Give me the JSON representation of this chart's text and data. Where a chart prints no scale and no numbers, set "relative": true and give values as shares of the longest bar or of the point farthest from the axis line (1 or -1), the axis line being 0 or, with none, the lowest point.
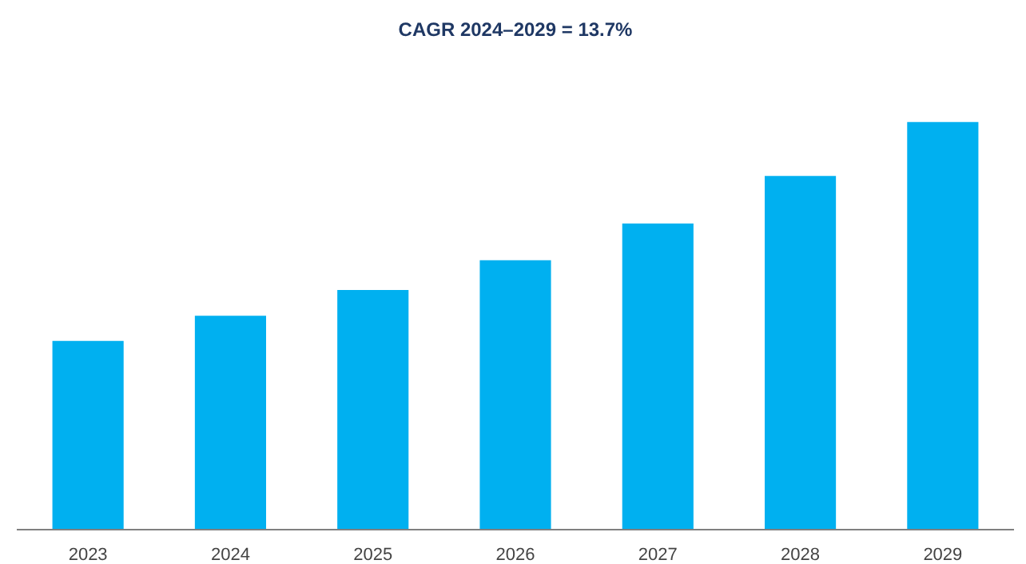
{
  "chart_data": {
    "type": "bar",
    "title": "CAGR 2024–2029 = 13.7%",
    "categories": [
      "2023",
      "2024",
      "2025",
      "2026",
      "2027",
      "2028",
      "2029"
    ],
    "values": [
      0.463,
      0.525,
      0.588,
      0.661,
      0.751,
      0.868,
      1
    ],
    "color": "#00b0f0",
    "relative": true,
    "grid": false
  }
}
